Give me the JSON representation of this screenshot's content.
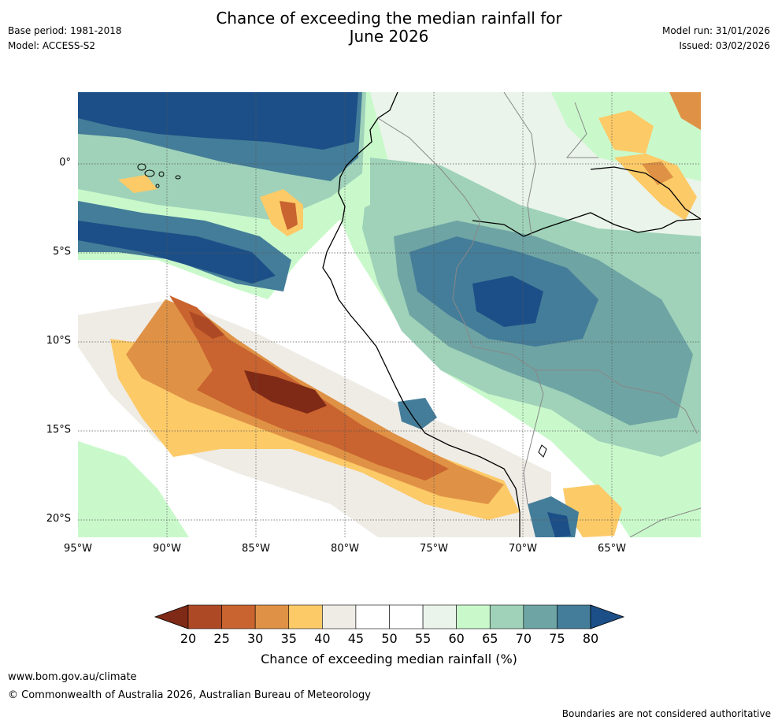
{
  "header": {
    "title_line1": "Chance of exceeding the median rainfall for",
    "title_line2": "June 2026",
    "base_period": "Base period: 1981-2018",
    "model": "Model: ACCESS-S2",
    "model_run": "Model run: 31/01/2026",
    "issued": "Issued: 03/02/2026"
  },
  "map": {
    "lon_ticks": [
      "95°W",
      "90°W",
      "85°W",
      "80°W",
      "75°W",
      "70°W",
      "65°W"
    ],
    "lat_ticks": [
      "0°",
      "5°S",
      "10°S",
      "15°S",
      "20°S"
    ]
  },
  "colorbar": {
    "ticks": [
      "20",
      "25",
      "30",
      "35",
      "40",
      "45",
      "50",
      "55",
      "60",
      "65",
      "70",
      "75",
      "80"
    ],
    "colors": [
      "#7f2a16",
      "#ad4a25",
      "#c9632f",
      "#df9245",
      "#fdca68",
      "#efece6",
      "#ffffff",
      "#ffffff",
      "#eaf4ea",
      "#c9f9cb",
      "#9fd2b9",
      "#6fa4a4",
      "#447d99",
      "#1c4f87"
    ],
    "label": "Chance of exceeding median rainfall (%)"
  },
  "footer": {
    "url": "www.bom.gov.au/climate",
    "copyright": "© Commonwealth of Australia 2026, Australian Bureau of Meteorology",
    "disclaimer": "Boundaries are not considered authoritative"
  }
}
